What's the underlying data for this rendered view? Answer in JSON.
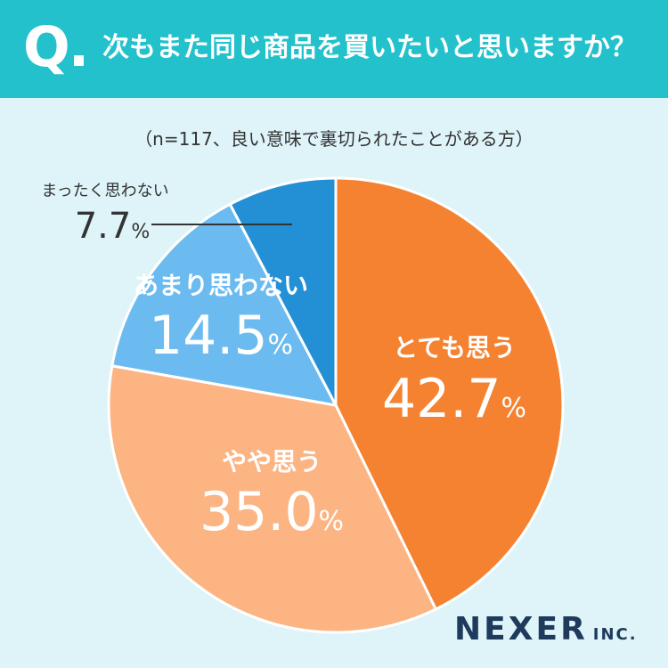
{
  "header": {
    "q_mark": "Q.",
    "question": "次もまた同じ商品を買いたいと思いますか？"
  },
  "note": "（n=117、良い意味で裏切られたことがある方）",
  "chart_data": {
    "type": "pie",
    "categories": [
      "とても思う",
      "やや思う",
      "あまり思わない",
      "まったく思わない"
    ],
    "values": [
      42.7,
      35.0,
      14.5,
      7.7
    ],
    "value_labels": [
      "42.7",
      "35.0",
      "14.5",
      "7.7"
    ],
    "unit": "%",
    "colors": [
      "#f58230",
      "#fcb483",
      "#6bbbf0",
      "#2390d6"
    ],
    "start": "12 o'clock",
    "direction": "clockwise"
  },
  "brand": {
    "name": "NEXER",
    "suffix": "INC."
  }
}
